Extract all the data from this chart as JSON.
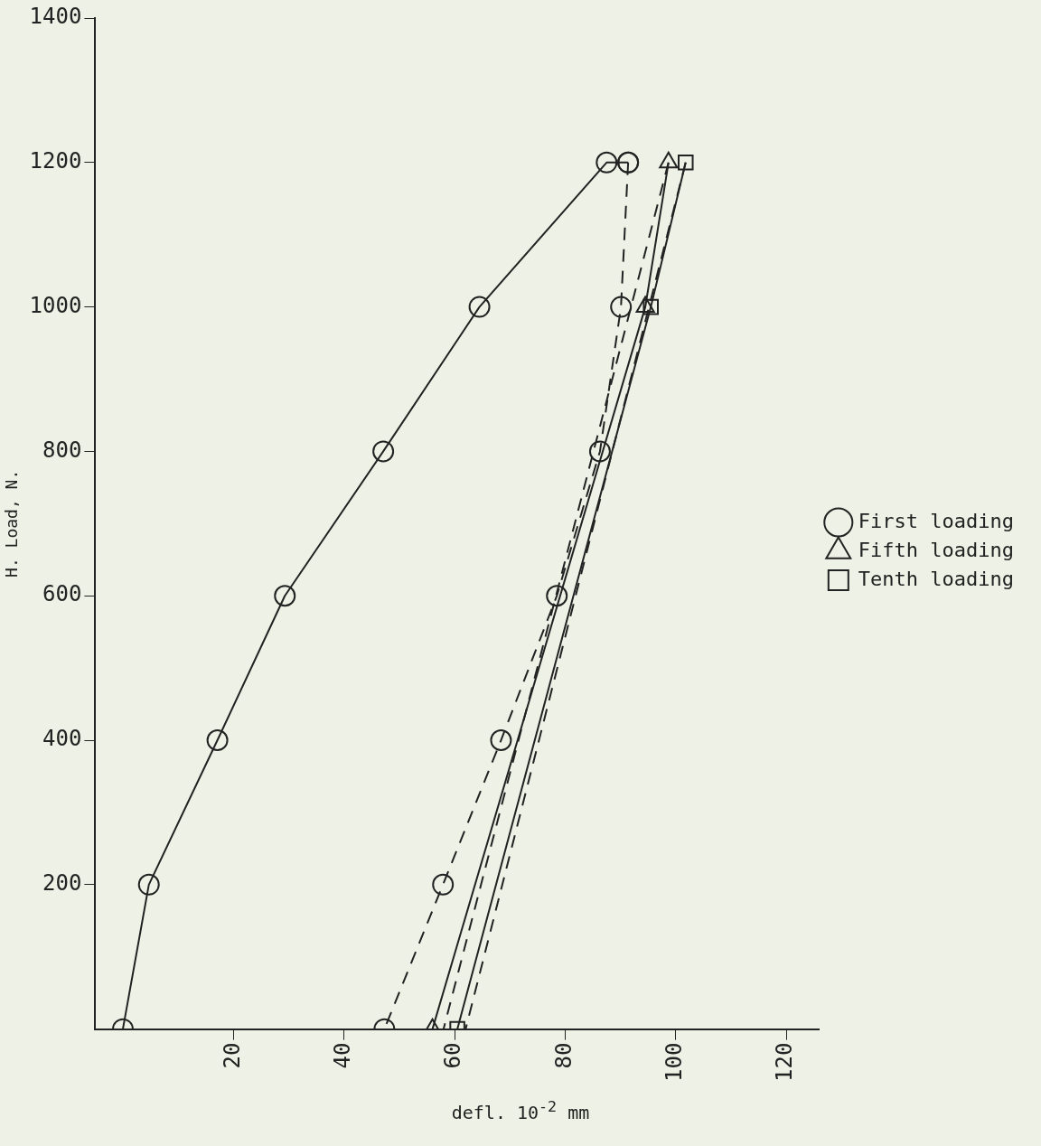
{
  "chart_data": {
    "type": "line",
    "xlabel": "defl. 10$^{-2}$ mm",
    "ylabel": "H. Load, N.",
    "xlim": [
      -5,
      126
    ],
    "ylim": [
      0,
      1400
    ],
    "xticks": [
      20,
      40,
      60,
      80,
      100,
      120
    ],
    "yticks": [
      200,
      400,
      600,
      800,
      1000,
      1200,
      1400
    ],
    "grid": false,
    "legend": "right",
    "series": [
      {
        "name": "First loading",
        "color": "#222222",
        "marker": "circle",
        "line_style": "solid",
        "x": [
          0,
          4.7,
          17.1,
          29.3,
          47.1,
          64.5,
          87.5,
          91.4
        ],
        "values": [
          0,
          200,
          400,
          600,
          800,
          1000,
          1200,
          1200
        ]
      },
      {
        "color": "#222222",
        "marker": "circle",
        "line_style": "dashed",
        "x": [
          91.4,
          90.1,
          86.3,
          78.5,
          68.4,
          57.9,
          47.3
        ],
        "values": [
          1200,
          1000,
          800,
          600,
          400,
          200,
          0
        ]
      },
      {
        "name": "Fifth loading",
        "color": "#222222",
        "marker": "triangle",
        "line_style": "solid",
        "x": [
          56,
          94.5,
          98.7
        ],
        "values": [
          0,
          1000,
          1200
        ]
      },
      {
        "color": "#222222",
        "marker": "none",
        "line_style": "dashed",
        "x": [
          98.7,
          58
        ],
        "values": [
          1200,
          0
        ]
      },
      {
        "name": "Tenth loading",
        "color": "#222222",
        "marker": "square",
        "line_style": "solid",
        "x": [
          60.5,
          95.5,
          101.8
        ],
        "values": [
          0,
          1000,
          1200
        ]
      },
      {
        "color": "#222222",
        "marker": "none",
        "line_style": "dashed",
        "x": [
          101.8,
          62
        ],
        "values": [
          1200,
          0
        ]
      }
    ]
  }
}
